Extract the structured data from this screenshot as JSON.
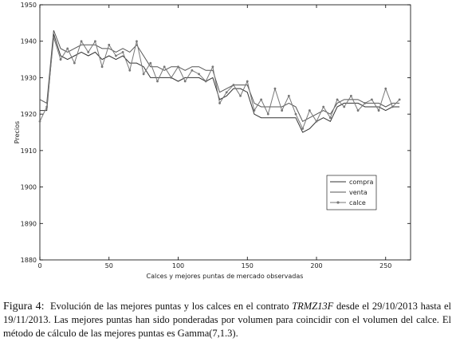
{
  "chart_data": {
    "type": "line",
    "xlabel": "Calces y mejores puntas de mercado observadas",
    "ylabel": "Precios",
    "x": [
      0,
      5,
      10,
      15,
      20,
      25,
      30,
      35,
      40,
      45,
      50,
      55,
      60,
      65,
      70,
      75,
      80,
      85,
      90,
      95,
      100,
      105,
      110,
      115,
      120,
      125,
      130,
      135,
      140,
      145,
      150,
      155,
      160,
      165,
      170,
      175,
      180,
      185,
      190,
      195,
      200,
      205,
      210,
      215,
      220,
      225,
      230,
      235,
      240,
      245,
      250,
      255,
      260
    ],
    "series": [
      {
        "name": "compra",
        "color": "#333333",
        "marker": false,
        "values": [
          1921,
          1921,
          1942,
          1936,
          1935,
          1936,
          1937,
          1936,
          1937,
          1935,
          1936,
          1935,
          1936,
          1934,
          1934,
          1933,
          1930,
          1930,
          1930,
          1930,
          1929,
          1930,
          1930,
          1930,
          1929,
          1930,
          1924,
          1925,
          1927,
          1927,
          1926,
          1920,
          1919,
          1919,
          1919,
          1919,
          1919,
          1919,
          1915,
          1916,
          1918,
          1919,
          1918,
          1922,
          1923,
          1923,
          1923,
          1922,
          1922,
          1922,
          1921,
          1922,
          1922
        ]
      },
      {
        "name": "venta",
        "color": "#555555",
        "marker": false,
        "values": [
          1924,
          1923,
          1943,
          1938,
          1937,
          1938,
          1939,
          1939,
          1939,
          1938,
          1938,
          1937,
          1938,
          1937,
          1939,
          1936,
          1933,
          1933,
          1932,
          1933,
          1933,
          1932,
          1933,
          1933,
          1932,
          1932,
          1926,
          1927,
          1928,
          1928,
          1928,
          1923,
          1922,
          1922,
          1922,
          1922,
          1923,
          1922,
          1918,
          1919,
          1920,
          1921,
          1920,
          1923,
          1924,
          1924,
          1924,
          1923,
          1923,
          1923,
          1922,
          1923,
          1923
        ]
      },
      {
        "name": "calce",
        "color": "#777777",
        "marker": true,
        "values": [
          1918,
          1922,
          1941,
          1935,
          1938,
          1934,
          1940,
          1937,
          1940,
          1933,
          1939,
          1936,
          1937,
          1932,
          1940,
          1931,
          1934,
          1929,
          1933,
          1930,
          1933,
          1929,
          1932,
          1931,
          1929,
          1933,
          1923,
          1926,
          1928,
          1925,
          1929,
          1921,
          1924,
          1920,
          1927,
          1921,
          1925,
          1920,
          1916,
          1921,
          1918,
          1922,
          1919,
          1924,
          1922,
          1925,
          1921,
          1923,
          1924,
          1921,
          1927,
          1922,
          1924
        ]
      }
    ],
    "xlim": [
      0,
      268
    ],
    "xticks": [
      0,
      50,
      100,
      150,
      200,
      250
    ],
    "ylim": [
      1880,
      1950
    ],
    "yticks": [
      1880,
      1890,
      1900,
      1910,
      1920,
      1930,
      1940,
      1950
    ],
    "grid": false,
    "legend": "lower right"
  },
  "caption": {
    "label": "Figura 4:",
    "text_before": "Evolución de las mejores puntas y los calces en el contrato",
    "emphasis": "TRMZ13F",
    "text_after": "desde el 29/10/2013 hasta el 19/11/2013. Las mejores puntas han sido ponderadas por volumen para coincidir con el volumen del calce. El método de cálculo de las mejores puntas es Gamma(7,1.3)."
  }
}
